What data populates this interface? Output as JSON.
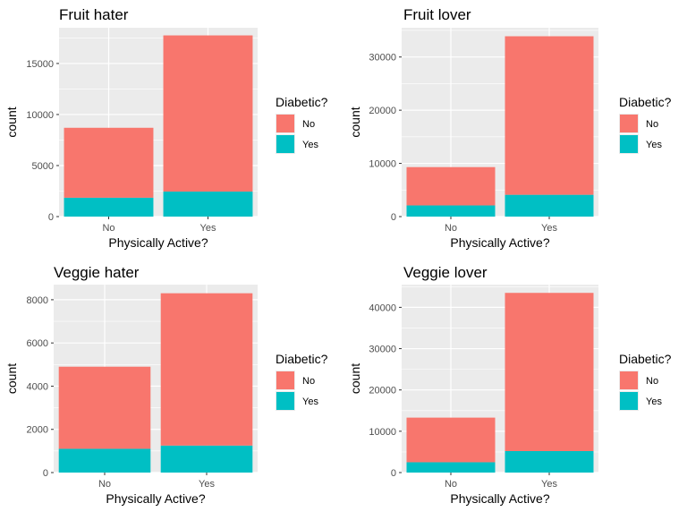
{
  "colors": {
    "no": "#F8766D",
    "yes": "#00BFC4",
    "panel_bg": "#EBEBEB",
    "grid": "#FFFFFF"
  },
  "chart_data": [
    {
      "type": "bar",
      "stacked": true,
      "title": "Fruit hater",
      "xlabel": "Physically Active?",
      "ylabel": "count",
      "categories": [
        "No",
        "Yes"
      ],
      "series": [
        {
          "name": "No",
          "values": [
            6850,
            15300
          ]
        },
        {
          "name": "Yes",
          "values": [
            1850,
            2450
          ]
        }
      ],
      "ylim": [
        0,
        18500
      ],
      "yticks": [
        0,
        5000,
        10000,
        15000
      ],
      "ytick_labels": [
        "0",
        "5000",
        "10000",
        "15000"
      ],
      "legend": {
        "title": "Diabetic?",
        "items": [
          "No",
          "Yes"
        ],
        "placement": "right"
      },
      "grid": true
    },
    {
      "type": "bar",
      "stacked": true,
      "title": "Fruit lover",
      "xlabel": "Physically Active?",
      "ylabel": "count",
      "categories": [
        "No",
        "Yes"
      ],
      "series": [
        {
          "name": "No",
          "values": [
            7200,
            29800
          ]
        },
        {
          "name": "Yes",
          "values": [
            2100,
            4100
          ]
        }
      ],
      "ylim": [
        0,
        35500
      ],
      "yticks": [
        0,
        10000,
        20000,
        30000
      ],
      "ytick_labels": [
        "0",
        "10000",
        "20000",
        "30000"
      ],
      "legend": {
        "title": "Diabetic?",
        "items": [
          "No",
          "Yes"
        ],
        "placement": "right"
      },
      "grid": true
    },
    {
      "type": "bar",
      "stacked": true,
      "title": "Veggie hater",
      "xlabel": "Physically Active?",
      "ylabel": "count",
      "categories": [
        "No",
        "Yes"
      ],
      "series": [
        {
          "name": "No",
          "values": [
            3800,
            7050
          ]
        },
        {
          "name": "Yes",
          "values": [
            1100,
            1250
          ]
        }
      ],
      "ylim": [
        0,
        8700
      ],
      "yticks": [
        0,
        2000,
        4000,
        6000,
        8000
      ],
      "ytick_labels": [
        "0",
        "2000",
        "4000",
        "6000",
        "8000"
      ],
      "legend": {
        "title": "Diabetic?",
        "items": [
          "No",
          "Yes"
        ],
        "placement": "right"
      },
      "grid": true
    },
    {
      "type": "bar",
      "stacked": true,
      "title": "Veggie lover",
      "xlabel": "Physically Active?",
      "ylabel": "count",
      "categories": [
        "No",
        "Yes"
      ],
      "series": [
        {
          "name": "No",
          "values": [
            10800,
            38300
          ]
        },
        {
          "name": "Yes",
          "values": [
            2500,
            5200
          ]
        }
      ],
      "ylim": [
        0,
        45500
      ],
      "yticks": [
        0,
        10000,
        20000,
        30000,
        40000
      ],
      "ytick_labels": [
        "0",
        "10000",
        "20000",
        "30000",
        "40000"
      ],
      "legend": {
        "title": "Diabetic?",
        "items": [
          "No",
          "Yes"
        ],
        "placement": "right"
      },
      "grid": true
    }
  ]
}
